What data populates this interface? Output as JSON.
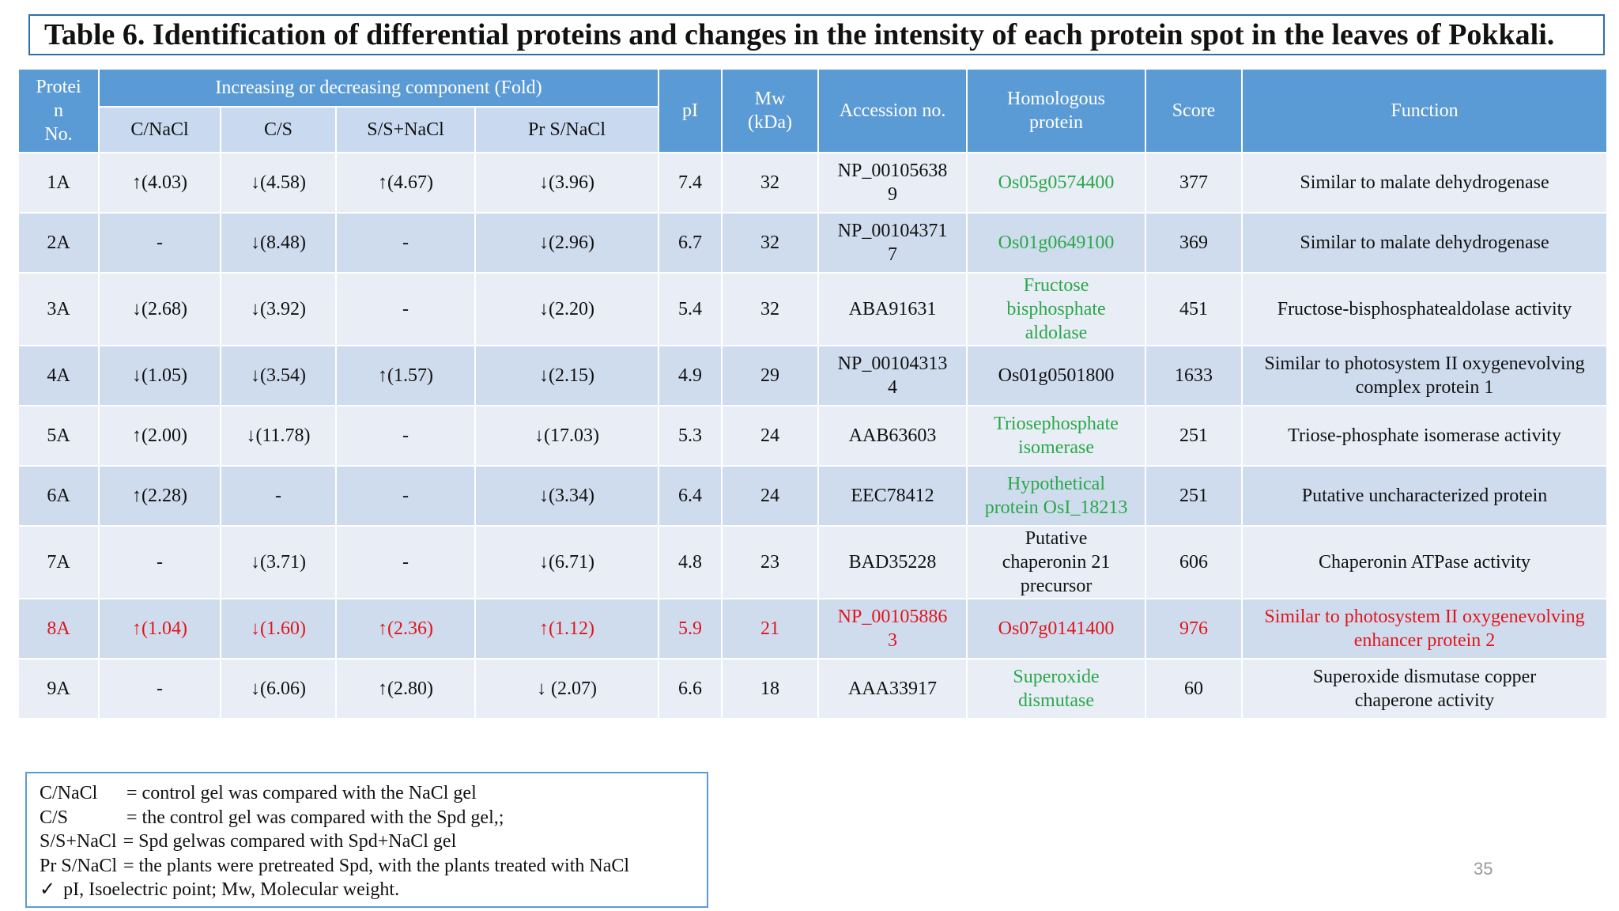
{
  "title": "Table 6.  Identification of differential proteins and changes in the intensity of each protein spot in the leaves of Pokkali.",
  "table": {
    "header": {
      "protein_no": "Protei\nn\nNo.",
      "increasing_group": "Increasing or decreasing component (Fold)",
      "sub_columns": [
        "C/NaCl",
        "C/S",
        "S/S+NaCl",
        "Pr S/NaCl"
      ],
      "pi": "pI",
      "mw": "Mw\n(kDa)",
      "accession": "Accession no.",
      "homologous": "Homologous\nprotein",
      "score": "Score",
      "function": "Function"
    },
    "rows": [
      {
        "no": "1A",
        "c_nacl": "↑(4.03)",
        "c_s": "↓(4.58)",
        "s_snacl": "↑(4.67)",
        "pr_snacl": "↓(3.96)",
        "pi": "7.4",
        "mw": "32",
        "accession": "NP_00105638\n9",
        "homologous": "Os05g0574400",
        "score": "377",
        "function": "Similar to malate dehydrogenase"
      },
      {
        "no": "2A",
        "c_nacl": "-",
        "c_s": "↓(8.48)",
        "s_snacl": "-",
        "pr_snacl": "↓(2.96)",
        "pi": "6.7",
        "mw": "32",
        "accession": "NP_00104371\n7",
        "homologous": "Os01g0649100",
        "score": "369",
        "function": "Similar to malate dehydrogenase"
      },
      {
        "no": "3A",
        "c_nacl": "↓(2.68)",
        "c_s": "↓(3.92)",
        "s_snacl": "-",
        "pr_snacl": "↓(2.20)",
        "pi": "5.4",
        "mw": "32",
        "accession": "ABA91631",
        "homologous": "Fructose\nbisphosphate\naldolase",
        "score": "451",
        "function": "Fructose-bisphosphatealdolase activity"
      },
      {
        "no": "4A",
        "c_nacl": "↓(1.05)",
        "c_s": "↓(3.54)",
        "s_snacl": "↑(1.57)",
        "pr_snacl": "↓(2.15)",
        "pi": "4.9",
        "mw": "29",
        "accession": "NP_00104313\n4",
        "homologous": "Os01g0501800",
        "score": "1633",
        "function": "Similar to photosystem II oxygenevolving\ncomplex protein 1"
      },
      {
        "no": "5A",
        "c_nacl": "↑(2.00)",
        "c_s": "↓(11.78)",
        "s_snacl": "-",
        "pr_snacl": "↓(17.03)",
        "pi": "5.3",
        "mw": "24",
        "accession": "AAB63603",
        "homologous": "Triosephosphate\nisomerase",
        "score": "251",
        "function": "Triose-phosphate isomerase activity"
      },
      {
        "no": "6A",
        "c_nacl": "↑(2.28)",
        "c_s": "-",
        "s_snacl": "-",
        "pr_snacl": "↓(3.34)",
        "pi": "6.4",
        "mw": "24",
        "accession": "EEC78412",
        "homologous": "Hypothetical\nprotein OsI_18213",
        "score": "251",
        "function": "Putative uncharacterized protein"
      },
      {
        "no": "7A",
        "c_nacl": "-",
        "c_s": "↓(3.71)",
        "s_snacl": "-",
        "pr_snacl": "↓(6.71)",
        "pi": "4.8",
        "mw": "23",
        "accession": "BAD35228",
        "homologous": "Putative\nchaperonin 21\nprecursor",
        "score": "606",
        "function": "Chaperonin ATPase activity"
      },
      {
        "no": "8A",
        "c_nacl": "↑(1.04)",
        "c_s": "↓(1.60)",
        "s_snacl": "↑(2.36)",
        "pr_snacl": "↑(1.12)",
        "pi": "5.9",
        "mw": "21",
        "accession": "NP_00105886\n3",
        "homologous": "Os07g0141400",
        "score": "976",
        "function": "Similar to photosystem II oxygenevolving\nenhancer protein 2"
      },
      {
        "no": "9A",
        "c_nacl": "-",
        "c_s": "↓(6.06)",
        "s_snacl": "↑(2.80)",
        "pr_snacl": "↓ (2.07)",
        "pi": "6.6",
        "mw": "18",
        "accession": "AAA33917",
        "homologous": "Superoxide\ndismutase",
        "score": "60",
        "function": "Superoxide dismutase copper\nchaperone activity"
      }
    ]
  },
  "legend": [
    {
      "term": "C/NaCl",
      "definition": "= control gel was compared with the NaCl gel"
    },
    {
      "term": "C/S",
      "definition": "= the control gel was compared with the Spd gel,;"
    },
    {
      "term": "S/S+NaCl",
      "definition": "= Spd gelwas compared with Spd+NaCl gel"
    },
    {
      "term": "Pr S/NaCl",
      "definition": "= the plants were pretreated Spd, with the plants treated with NaCl"
    },
    {
      "term": "✓",
      "definition": "pI, Isoelectric point; Mw, Molecular weight."
    }
  ],
  "page_number": "35",
  "colors": {
    "header_blue": "#5b9bd5",
    "subheader_blue": "#c9daf0",
    "row_light": "#e8edf6",
    "row_dark": "#cfdcee",
    "green_text": "#2aa84a",
    "red_text": "#e0161b"
  }
}
